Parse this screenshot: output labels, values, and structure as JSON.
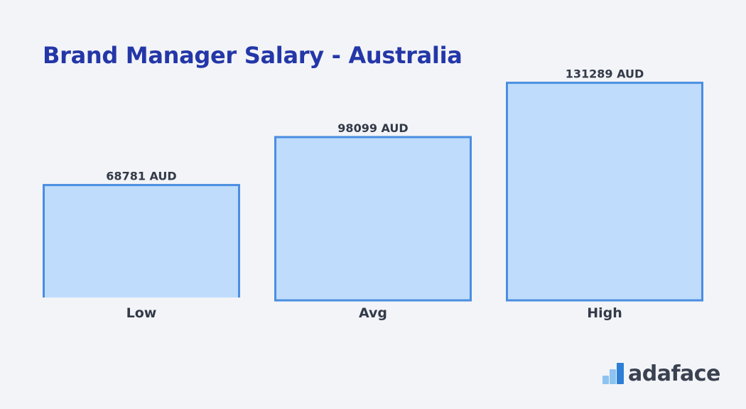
{
  "colors": {
    "title": "#2437a8",
    "bar_fill": "#bfdcfd",
    "bar_stroke": "#4a8ee0",
    "text": "#333a48",
    "brand_icon_light": "#8cc3f0",
    "brand_icon_dark": "#2d7fd6"
  },
  "chart_data": {
    "type": "bar",
    "title": "Brand Manager Salary - Australia",
    "categories": [
      "Low",
      "Avg",
      "High"
    ],
    "values": [
      68781,
      98099,
      131289
    ],
    "value_labels": [
      "68781 AUD",
      "98099 AUD",
      "131289 AUD"
    ],
    "unit": "AUD",
    "ylim": [
      0,
      155000
    ],
    "grid": false,
    "legend": "none"
  },
  "branding": {
    "name": "adaface",
    "icon": "adaface-logo-icon"
  }
}
